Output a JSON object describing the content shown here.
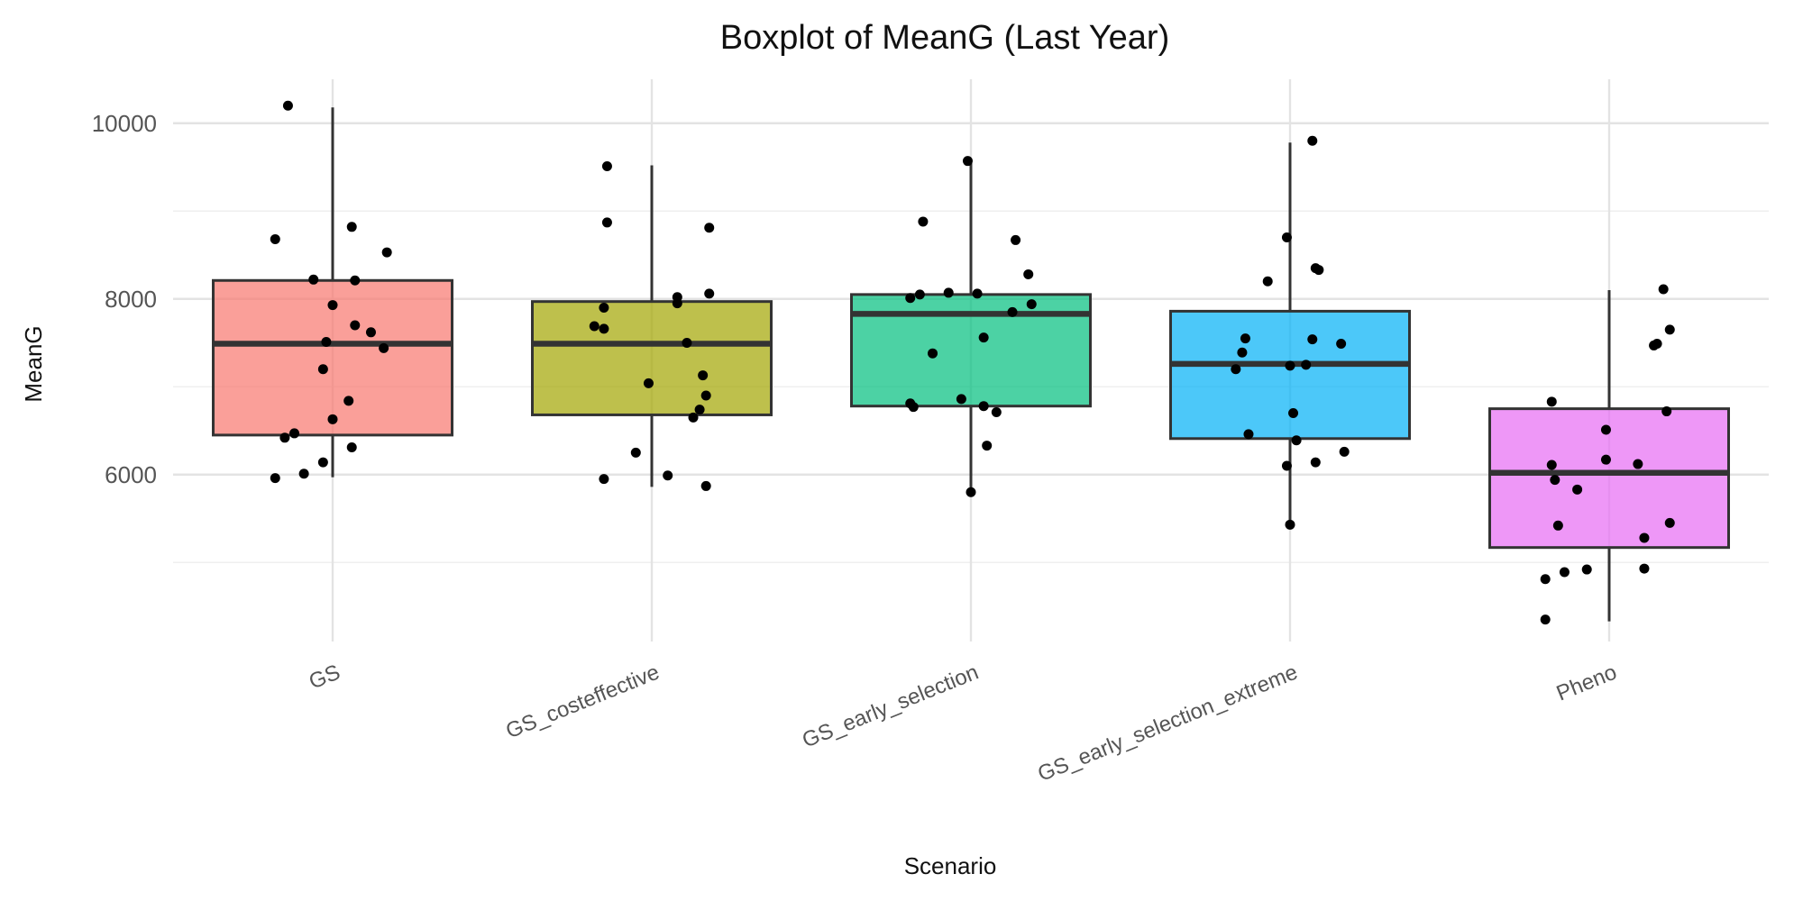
{
  "chart_data": {
    "type": "boxplot",
    "title": "Boxplot of MeanG (Last Year)",
    "xlabel": "Scenario",
    "ylabel": "MeanG",
    "ylim": [
      4100,
      10500
    ],
    "yticks": [
      6000,
      8000,
      10000
    ],
    "yticks_minor": [
      5000,
      7000,
      9000
    ],
    "grid": true,
    "legend": "none",
    "categories": [
      "GS",
      "GS_costeffective",
      "GS_early_selection",
      "GS_early_selection_extreme",
      "Pheno"
    ],
    "colors": [
      "#F8766D",
      "#A3A500",
      "#00BF7D",
      "#00B0F6",
      "#E76BF3"
    ],
    "boxes": [
      {
        "name": "GS",
        "whisker_low": 5970,
        "q1": 6450,
        "median": 7490,
        "q3": 8210,
        "whisker_high": 10180
      },
      {
        "name": "GS_costeffective",
        "whisker_low": 5860,
        "q1": 6680,
        "median": 7490,
        "q3": 7970,
        "whisker_high": 9520
      },
      {
        "name": "GS_early_selection",
        "whisker_low": 5800,
        "q1": 6780,
        "median": 7830,
        "q3": 8050,
        "whisker_high": 9570
      },
      {
        "name": "GS_early_selection_extreme",
        "whisker_low": 5420,
        "q1": 6410,
        "median": 7260,
        "q3": 7860,
        "whisker_high": 9780
      },
      {
        "name": "Pheno",
        "whisker_low": 4330,
        "q1": 5170,
        "median": 6020,
        "q3": 6750,
        "whisker_high": 8100
      }
    ],
    "points": [
      {
        "cat": 0,
        "dx": -0.14,
        "y": 10200
      },
      {
        "cat": 0,
        "dx": -0.18,
        "y": 8680
      },
      {
        "cat": 0,
        "dx": 0.06,
        "y": 8820
      },
      {
        "cat": 0,
        "dx": 0.17,
        "y": 8530
      },
      {
        "cat": 0,
        "dx": -0.06,
        "y": 8220
      },
      {
        "cat": 0,
        "dx": 0.07,
        "y": 8210
      },
      {
        "cat": 0,
        "dx": 0.0,
        "y": 7930
      },
      {
        "cat": 0,
        "dx": 0.07,
        "y": 7700
      },
      {
        "cat": 0,
        "dx": 0.12,
        "y": 7620
      },
      {
        "cat": 0,
        "dx": -0.02,
        "y": 7510
      },
      {
        "cat": 0,
        "dx": 0.16,
        "y": 7440
      },
      {
        "cat": 0,
        "dx": -0.03,
        "y": 7200
      },
      {
        "cat": 0,
        "dx": 0.05,
        "y": 6840
      },
      {
        "cat": 0,
        "dx": 0.0,
        "y": 6630
      },
      {
        "cat": 0,
        "dx": -0.12,
        "y": 6470
      },
      {
        "cat": 0,
        "dx": -0.15,
        "y": 6420
      },
      {
        "cat": 0,
        "dx": 0.06,
        "y": 6310
      },
      {
        "cat": 0,
        "dx": -0.03,
        "y": 6140
      },
      {
        "cat": 0,
        "dx": -0.09,
        "y": 6010
      },
      {
        "cat": 0,
        "dx": -0.18,
        "y": 5960
      },
      {
        "cat": 1,
        "dx": -0.14,
        "y": 9510
      },
      {
        "cat": 1,
        "dx": -0.14,
        "y": 8870
      },
      {
        "cat": 1,
        "dx": 0.18,
        "y": 8810
      },
      {
        "cat": 1,
        "dx": 0.18,
        "y": 8060
      },
      {
        "cat": 1,
        "dx": 0.08,
        "y": 8020
      },
      {
        "cat": 1,
        "dx": 0.08,
        "y": 7950
      },
      {
        "cat": 1,
        "dx": -0.15,
        "y": 7900
      },
      {
        "cat": 1,
        "dx": -0.18,
        "y": 7690
      },
      {
        "cat": 1,
        "dx": -0.15,
        "y": 7660
      },
      {
        "cat": 1,
        "dx": 0.11,
        "y": 7500
      },
      {
        "cat": 1,
        "dx": 0.16,
        "y": 7130
      },
      {
        "cat": 1,
        "dx": -0.01,
        "y": 7040
      },
      {
        "cat": 1,
        "dx": 0.17,
        "y": 6900
      },
      {
        "cat": 1,
        "dx": 0.15,
        "y": 6740
      },
      {
        "cat": 1,
        "dx": 0.13,
        "y": 6650
      },
      {
        "cat": 1,
        "dx": -0.05,
        "y": 6250
      },
      {
        "cat": 1,
        "dx": 0.05,
        "y": 5990
      },
      {
        "cat": 1,
        "dx": -0.15,
        "y": 5950
      },
      {
        "cat": 1,
        "dx": 0.17,
        "y": 5870
      },
      {
        "cat": 2,
        "dx": -0.01,
        "y": 9570
      },
      {
        "cat": 2,
        "dx": -0.15,
        "y": 8880
      },
      {
        "cat": 2,
        "dx": 0.14,
        "y": 8670
      },
      {
        "cat": 2,
        "dx": 0.18,
        "y": 8280
      },
      {
        "cat": 2,
        "dx": -0.07,
        "y": 8070
      },
      {
        "cat": 2,
        "dx": 0.02,
        "y": 8060
      },
      {
        "cat": 2,
        "dx": -0.16,
        "y": 8050
      },
      {
        "cat": 2,
        "dx": -0.19,
        "y": 8010
      },
      {
        "cat": 2,
        "dx": 0.19,
        "y": 7940
      },
      {
        "cat": 2,
        "dx": 0.13,
        "y": 7850
      },
      {
        "cat": 2,
        "dx": 0.04,
        "y": 7560
      },
      {
        "cat": 2,
        "dx": -0.12,
        "y": 7380
      },
      {
        "cat": 2,
        "dx": -0.03,
        "y": 6860
      },
      {
        "cat": 2,
        "dx": -0.19,
        "y": 6810
      },
      {
        "cat": 2,
        "dx": -0.18,
        "y": 6770
      },
      {
        "cat": 2,
        "dx": 0.04,
        "y": 6780
      },
      {
        "cat": 2,
        "dx": 0.08,
        "y": 6710
      },
      {
        "cat": 2,
        "dx": 0.05,
        "y": 6330
      },
      {
        "cat": 2,
        "dx": 0.0,
        "y": 5800
      },
      {
        "cat": 3,
        "dx": 0.07,
        "y": 9800
      },
      {
        "cat": 3,
        "dx": -0.01,
        "y": 8700
      },
      {
        "cat": 3,
        "dx": 0.08,
        "y": 8350
      },
      {
        "cat": 3,
        "dx": 0.09,
        "y": 8330
      },
      {
        "cat": 3,
        "dx": -0.07,
        "y": 8200
      },
      {
        "cat": 3,
        "dx": -0.14,
        "y": 7550
      },
      {
        "cat": 3,
        "dx": 0.07,
        "y": 7540
      },
      {
        "cat": 3,
        "dx": 0.16,
        "y": 7490
      },
      {
        "cat": 3,
        "dx": -0.15,
        "y": 7390
      },
      {
        "cat": 3,
        "dx": 0.05,
        "y": 7250
      },
      {
        "cat": 3,
        "dx": 0.0,
        "y": 7240
      },
      {
        "cat": 3,
        "dx": -0.17,
        "y": 7200
      },
      {
        "cat": 3,
        "dx": 0.01,
        "y": 6700
      },
      {
        "cat": 3,
        "dx": -0.13,
        "y": 6460
      },
      {
        "cat": 3,
        "dx": 0.02,
        "y": 6390
      },
      {
        "cat": 3,
        "dx": 0.17,
        "y": 6260
      },
      {
        "cat": 3,
        "dx": 0.08,
        "y": 6140
      },
      {
        "cat": 3,
        "dx": -0.01,
        "y": 6100
      },
      {
        "cat": 3,
        "dx": 0.0,
        "y": 5430
      },
      {
        "cat": 4,
        "dx": 0.17,
        "y": 8110
      },
      {
        "cat": 4,
        "dx": 0.19,
        "y": 7650
      },
      {
        "cat": 4,
        "dx": 0.15,
        "y": 7490
      },
      {
        "cat": 4,
        "dx": 0.14,
        "y": 7470
      },
      {
        "cat": 4,
        "dx": -0.18,
        "y": 6830
      },
      {
        "cat": 4,
        "dx": 0.18,
        "y": 6720
      },
      {
        "cat": 4,
        "dx": -0.01,
        "y": 6510
      },
      {
        "cat": 4,
        "dx": -0.01,
        "y": 6170
      },
      {
        "cat": 4,
        "dx": 0.09,
        "y": 6120
      },
      {
        "cat": 4,
        "dx": -0.18,
        "y": 6110
      },
      {
        "cat": 4,
        "dx": -0.17,
        "y": 5940
      },
      {
        "cat": 4,
        "dx": -0.1,
        "y": 5830
      },
      {
        "cat": 4,
        "dx": 0.19,
        "y": 5450
      },
      {
        "cat": 4,
        "dx": -0.16,
        "y": 5420
      },
      {
        "cat": 4,
        "dx": 0.11,
        "y": 5280
      },
      {
        "cat": 4,
        "dx": 0.11,
        "y": 4930
      },
      {
        "cat": 4,
        "dx": -0.07,
        "y": 4920
      },
      {
        "cat": 4,
        "dx": -0.14,
        "y": 4890
      },
      {
        "cat": 4,
        "dx": -0.2,
        "y": 4810
      },
      {
        "cat": 4,
        "dx": -0.2,
        "y": 4350
      }
    ]
  }
}
